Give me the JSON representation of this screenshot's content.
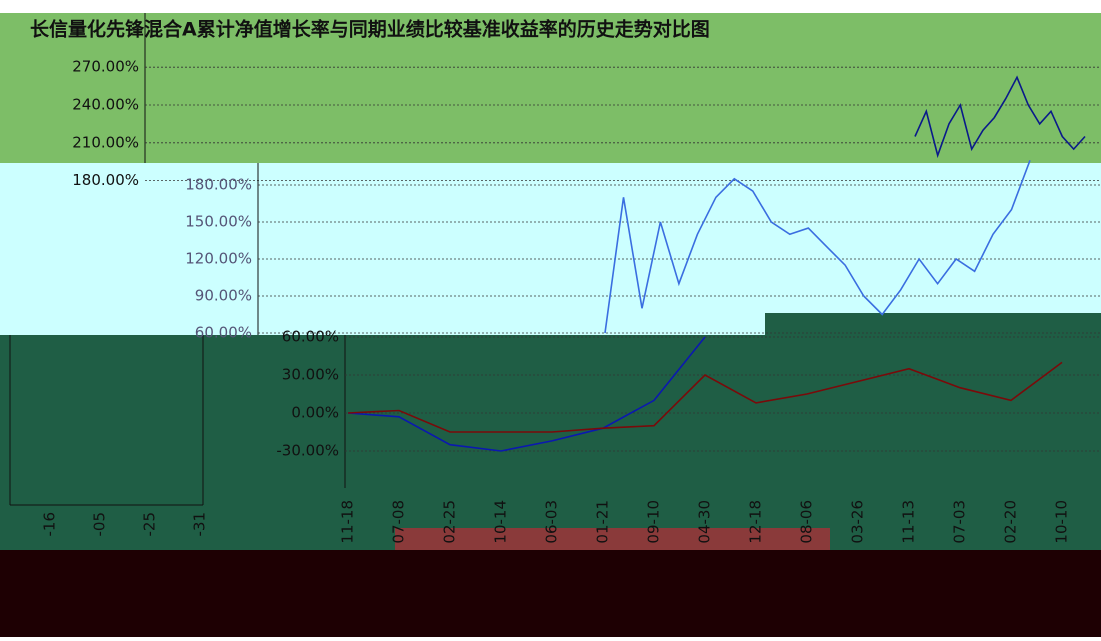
{
  "chart_data": [
    {
      "type": "line",
      "title": "长信量化先锋混合A累计净值增长率与同期业绩比较基准收益率的历史走势对比图",
      "ylim": [
        194,
        313
      ],
      "yticks": [
        {
          "value": 270,
          "label": "270.00%"
        },
        {
          "value": 240,
          "label": "240.00%"
        },
        {
          "value": 210,
          "label": "210.00%"
        },
        {
          "value": 180,
          "label": "180.00%"
        }
      ],
      "grid": true,
      "series": [
        {
          "color": "#0a1a8a",
          "values": [
            215,
            235,
            200,
            225,
            240,
            205,
            220,
            230,
            245,
            262,
            240,
            225,
            235,
            215,
            205,
            215
          ]
        }
      ]
    },
    {
      "type": "line",
      "ylim": [
        58.4,
        197.8
      ],
      "yticks": [
        {
          "value": 180,
          "label": "180.00%"
        },
        {
          "value": 150,
          "label": "150.00%"
        },
        {
          "value": 120,
          "label": "120.00%"
        },
        {
          "value": 90,
          "label": "90.00%"
        },
        {
          "value": 60,
          "label": "60.00%"
        }
      ],
      "grid": true,
      "series": [
        {
          "color": "#3a6ee0",
          "values": [
            60,
            170,
            80,
            150,
            100,
            140,
            170,
            185,
            175,
            150,
            140,
            145,
            130,
            115,
            90,
            75,
            95,
            120,
            100,
            120,
            110,
            140,
            160,
            200
          ]
        }
      ]
    },
    {
      "type": "line",
      "categories": [
        "11-18",
        "07-08",
        "02-25",
        "10-14",
        "06-03",
        "01-21",
        "09-10",
        "04-30",
        "12-18",
        "08-06",
        "03-26",
        "11-13",
        "07-03",
        "02-20",
        "10-10"
      ],
      "ylim": [
        -59.2,
        61.6
      ],
      "yticks": [
        {
          "value": 60,
          "label": "60.00%"
        },
        {
          "value": 30,
          "label": "30.00%"
        },
        {
          "value": 0,
          "label": "0.00%"
        },
        {
          "value": -30,
          "label": "-30.00%"
        }
      ],
      "grid": true,
      "series": [
        {
          "color": "#0b18b0",
          "values": [
            0,
            -3,
            -25,
            -30,
            -22,
            -12,
            10,
            60,
            null,
            null,
            null,
            null,
            null,
            null,
            null
          ]
        },
        {
          "color": "#7a0a0a",
          "values": [
            0,
            2,
            -15,
            -15,
            -15,
            -12,
            -10,
            30,
            8,
            15,
            25,
            35,
            20,
            10,
            40
          ]
        }
      ]
    },
    {
      "type": "line",
      "categories": [
        "-16",
        "-05",
        "-25",
        "-31"
      ]
    }
  ]
}
